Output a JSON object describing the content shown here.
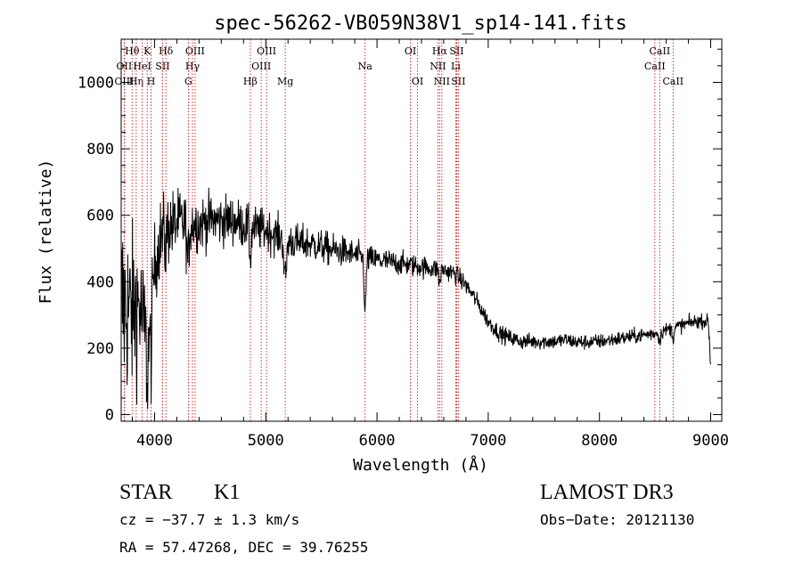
{
  "chart_data": {
    "type": "line",
    "title": "spec-56262-VB059N38V1_sp14-141.fits",
    "xlabel": "Wavelength (Å)",
    "ylabel": "Flux (relative)",
    "xlim": [
      3700,
      9100
    ],
    "ylim": [
      -20,
      1130
    ],
    "xticks": [
      4000,
      5000,
      6000,
      7000,
      8000,
      9000
    ],
    "yticks": [
      0,
      200,
      400,
      600,
      800,
      1000
    ],
    "series": [
      {
        "name": "flux",
        "continuum": [
          [
            3700,
            330
          ],
          [
            3760,
            320
          ],
          [
            3800,
            300
          ],
          [
            3850,
            340
          ],
          [
            3900,
            270
          ],
          [
            3950,
            250
          ],
          [
            4000,
            450
          ],
          [
            4050,
            530
          ],
          [
            4100,
            560
          ],
          [
            4200,
            575
          ],
          [
            4300,
            580
          ],
          [
            4400,
            575
          ],
          [
            4500,
            585
          ],
          [
            4600,
            585
          ],
          [
            4700,
            585
          ],
          [
            4800,
            570
          ],
          [
            4900,
            560
          ],
          [
            5000,
            555
          ],
          [
            5100,
            540
          ],
          [
            5200,
            525
          ],
          [
            5300,
            515
          ],
          [
            5400,
            515
          ],
          [
            5500,
            505
          ],
          [
            5600,
            495
          ],
          [
            5700,
            490
          ],
          [
            5800,
            480
          ],
          [
            5900,
            470
          ],
          [
            6000,
            465
          ],
          [
            6100,
            460
          ],
          [
            6200,
            455
          ],
          [
            6300,
            450
          ],
          [
            6400,
            445
          ],
          [
            6500,
            440
          ],
          [
            6600,
            435
          ],
          [
            6700,
            425
          ],
          [
            6800,
            390
          ],
          [
            6900,
            340
          ],
          [
            7000,
            280
          ],
          [
            7100,
            245
          ],
          [
            7200,
            230
          ],
          [
            7300,
            220
          ],
          [
            7400,
            220
          ],
          [
            7500,
            220
          ],
          [
            7600,
            220
          ],
          [
            7700,
            225
          ],
          [
            7800,
            218
          ],
          [
            7900,
            218
          ],
          [
            8000,
            220
          ],
          [
            8100,
            225
          ],
          [
            8200,
            230
          ],
          [
            8300,
            235
          ],
          [
            8400,
            240
          ],
          [
            8500,
            245
          ],
          [
            8600,
            255
          ],
          [
            8700,
            265
          ],
          [
            8800,
            275
          ],
          [
            8900,
            282
          ],
          [
            8980,
            280
          ],
          [
            9000,
            140
          ]
        ],
        "features": [
          {
            "center": 3934,
            "depth": 150,
            "width": 8
          },
          {
            "center": 3969,
            "depth": 140,
            "width": 8
          },
          {
            "center": 4100,
            "depth": 60,
            "width": 8
          },
          {
            "center": 4300,
            "depth": 120,
            "width": 10
          },
          {
            "center": 4861,
            "depth": 90,
            "width": 8
          },
          {
            "center": 5175,
            "depth": 120,
            "width": 12
          },
          {
            "center": 5893,
            "depth": 170,
            "width": 8
          },
          {
            "center": 6563,
            "depth": 40,
            "width": 8
          },
          {
            "center": 8542,
            "depth": 30,
            "width": 8
          },
          {
            "center": 8662,
            "depth": 30,
            "width": 8
          }
        ],
        "noise_scale": [
          [
            3700,
            230
          ],
          [
            4000,
            90
          ],
          [
            4400,
            60
          ],
          [
            5000,
            45
          ],
          [
            6000,
            28
          ],
          [
            7000,
            18
          ],
          [
            9000,
            15
          ]
        ]
      }
    ],
    "lines": [
      {
        "label": "Hθ",
        "wave": 3798,
        "row": 0
      },
      {
        "label": "Hη",
        "wave": 3835,
        "row": 2
      },
      {
        "label": "OII",
        "wave": 3727,
        "row": 1
      },
      {
        "label": "OIII",
        "wave": 3727,
        "row": 2
      },
      {
        "label": "HeI",
        "wave": 3889,
        "row": 1
      },
      {
        "label": "K",
        "wave": 3934,
        "row": 0
      },
      {
        "label": "H",
        "wave": 3969,
        "row": 2
      },
      {
        "label": "SII",
        "wave": 4072,
        "row": 1
      },
      {
        "label": "Hδ",
        "wave": 4102,
        "row": 0
      },
      {
        "label": "OIII",
        "wave": 4364,
        "row": 0
      },
      {
        "label": "Hγ",
        "wave": 4341,
        "row": 1
      },
      {
        "label": "G",
        "wave": 4304,
        "row": 2
      },
      {
        "label": "Hβ",
        "wave": 4861,
        "row": 2
      },
      {
        "label": "OIII",
        "wave": 5007,
        "row": 0
      },
      {
        "label": "OIII",
        "wave": 4959,
        "row": 1
      },
      {
        "label": "Mg",
        "wave": 5175,
        "row": 2
      },
      {
        "label": "Na",
        "wave": 5893,
        "row": 1
      },
      {
        "label": "OI",
        "wave": 6300,
        "row": 0
      },
      {
        "label": "OI",
        "wave": 6364,
        "row": 2
      },
      {
        "label": "Hα",
        "wave": 6563,
        "row": 0
      },
      {
        "label": "NII",
        "wave": 6548,
        "row": 1
      },
      {
        "label": "NII",
        "wave": 6583,
        "row": 2
      },
      {
        "label": "SII",
        "wave": 6716,
        "row": 0
      },
      {
        "label": "Li",
        "wave": 6708,
        "row": 1
      },
      {
        "label": "SII",
        "wave": 6731,
        "row": 2
      },
      {
        "label": "CaII",
        "wave": 8542,
        "row": 0
      },
      {
        "label": "CaII",
        "wave": 8498,
        "row": 1
      },
      {
        "label": "CaII",
        "wave": 8662,
        "row": 2
      }
    ]
  },
  "info": {
    "class": "STAR",
    "subclass": "K1",
    "cz": "cz = −37.7 ± 1.3 km/s",
    "coords": "RA =  57.47268, DEC =  39.76255",
    "survey": "LAMOST DR3",
    "obs_date": "Obs−Date: 20121130"
  }
}
